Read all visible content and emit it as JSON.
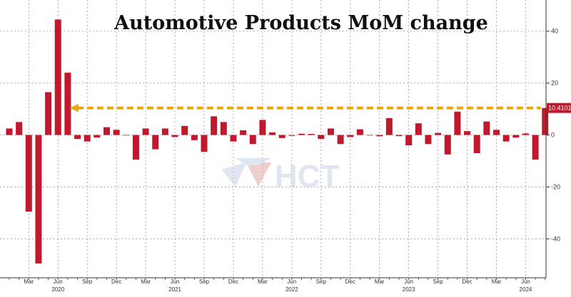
{
  "chart_data": {
    "type": "bar",
    "title": "Automotive Products MoM change",
    "ylim": [
      -55,
      52
    ],
    "yticks": [
      40,
      20,
      0,
      -20,
      -40
    ],
    "grid": true,
    "color": "#c0182d",
    "highlight_color": "#e6a817",
    "last_value_label": "10.4101",
    "months": [
      "Jan 2020",
      "Feb 2020",
      "Mar 2020",
      "Apr 2020",
      "May 2020",
      "Jun 2020",
      "Jul 2020",
      "Aug 2020",
      "Sep 2020",
      "Oct 2020",
      "Nov 2020",
      "Dec 2020",
      "Jan 2021",
      "Feb 2021",
      "Mar 2021",
      "Apr 2021",
      "May 2021",
      "Jun 2021",
      "Jul 2021",
      "Aug 2021",
      "Sep 2021",
      "Oct 2021",
      "Nov 2021",
      "Dec 2021",
      "Jan 2022",
      "Feb 2022",
      "Mar 2022",
      "Apr 2022",
      "May 2022",
      "Jun 2022",
      "Jul 2022",
      "Aug 2022",
      "Sep 2022",
      "Oct 2022",
      "Nov 2022",
      "Dec 2022",
      "Jan 2023",
      "Feb 2023",
      "Mar 2023",
      "Apr 2023",
      "May 2023",
      "Jun 2023",
      "Jul 2023",
      "Aug 2023",
      "Sep 2023",
      "Oct 2023",
      "Nov 2023",
      "Dec 2023",
      "Jan 2024",
      "Feb 2024",
      "Mar 2024",
      "Apr 2024",
      "May 2024",
      "Jun 2024",
      "Jul 2024",
      "Aug 2024"
    ],
    "values": [
      2.5,
      5,
      -29.5,
      -49.5,
      16.5,
      44.5,
      24,
      -1.5,
      -2.5,
      -1,
      3,
      2,
      -0.2,
      -9.5,
      2.5,
      -5.5,
      2.5,
      -0.8,
      3.5,
      -2,
      -6.5,
      7.2,
      5,
      -2.5,
      1.8,
      -3.5,
      5.8,
      1,
      -1.2,
      -0.3,
      0.5,
      0.4,
      -1.5,
      2.5,
      -3.5,
      -0.8,
      2.2,
      -0.2,
      -0.5,
      6.5,
      -0.4,
      -4,
      4.5,
      -3.5,
      0.8,
      -7.5,
      9,
      1.5,
      -7,
      5.2,
      2,
      -2.5,
      -1,
      0.6,
      -9.5,
      10.4101
    ],
    "x_tick_labels": [
      {
        "i": 2,
        "text": "Mar"
      },
      {
        "i": 5,
        "text": "Jun"
      },
      {
        "i": 8,
        "text": "Sep"
      },
      {
        "i": 11,
        "text": "Dec"
      },
      {
        "i": 14,
        "text": "Mar"
      },
      {
        "i": 17,
        "text": "Jun"
      },
      {
        "i": 20,
        "text": "Sep"
      },
      {
        "i": 23,
        "text": "Dec"
      },
      {
        "i": 26,
        "text": "Mar"
      },
      {
        "i": 29,
        "text": "Jun"
      },
      {
        "i": 32,
        "text": "Sep"
      },
      {
        "i": 35,
        "text": "Dec"
      },
      {
        "i": 38,
        "text": "Mar"
      },
      {
        "i": 41,
        "text": "Jun"
      },
      {
        "i": 44,
        "text": "Sep"
      },
      {
        "i": 47,
        "text": "Dec"
      },
      {
        "i": 50,
        "text": "Mar"
      },
      {
        "i": 53,
        "text": "Jun"
      }
    ],
    "year_labels": [
      {
        "i": 5,
        "text": "2020"
      },
      {
        "i": 17,
        "text": "2021"
      },
      {
        "i": 29,
        "text": "2022"
      },
      {
        "i": 41,
        "text": "2023"
      },
      {
        "i": 53,
        "text": "2024"
      }
    ]
  },
  "watermark": {
    "text": "HCT"
  }
}
